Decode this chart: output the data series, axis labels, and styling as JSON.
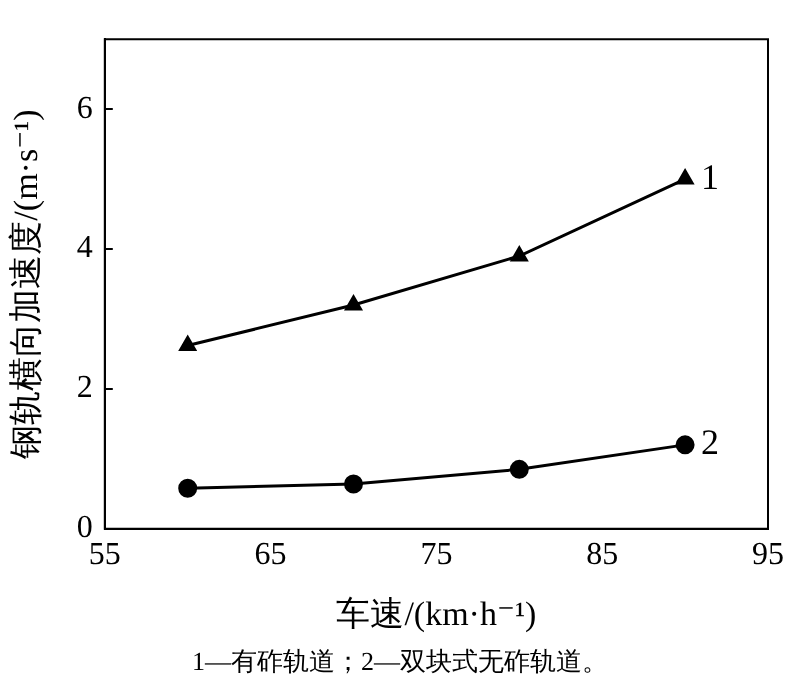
{
  "chart_data": {
    "type": "line",
    "xlabel": "车速/(km·h⁻¹)",
    "ylabel": "钢轨横向加速度/(m·s⁻¹)",
    "x": [
      60,
      70,
      80,
      90
    ],
    "series": [
      {
        "name": "1",
        "color": "#000000",
        "marker": "triangle",
        "values": [
          2.62,
          3.2,
          3.9,
          5.0
        ]
      },
      {
        "name": "2",
        "color": "#000000",
        "marker": "circle",
        "values": [
          0.58,
          0.64,
          0.85,
          1.2
        ]
      }
    ],
    "xlim": [
      55,
      95
    ],
    "xticks": [
      55,
      65,
      75,
      85,
      95
    ],
    "ylim": [
      0,
      7
    ],
    "yticks": [
      0,
      2,
      4,
      6
    ],
    "grid": false,
    "legend": false,
    "line_style": "solid",
    "annotations": [
      "1—有砟轨道；2—双块式无砟轨道。"
    ]
  }
}
